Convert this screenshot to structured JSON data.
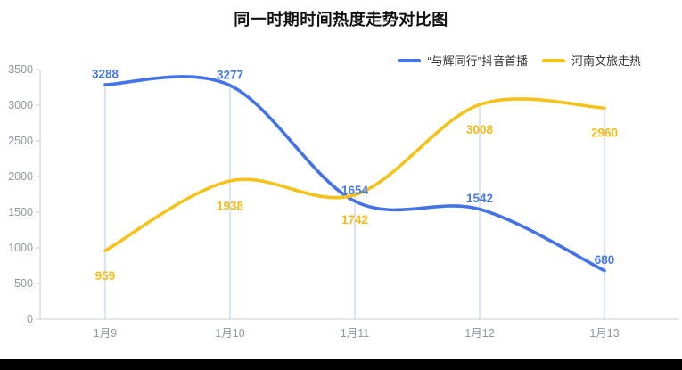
{
  "page": {
    "background": "#ffffff",
    "bottom_bar_color": "#000000"
  },
  "chart_data": {
    "type": "line",
    "title": "同一时期时间热度走势对比图",
    "categories": [
      "1月9",
      "1月10",
      "1月11",
      "1月12",
      "1月13"
    ],
    "series": [
      {
        "name": "“与辉同行”抖音首播",
        "values": [
          3288,
          3277,
          1654,
          1542,
          680
        ],
        "color": "#4472e8",
        "label_color": "#4779e8",
        "label_position": "top"
      },
      {
        "name": "河南文旅走热",
        "values": [
          959,
          1938,
          1742,
          3008,
          2960
        ],
        "color": "#f5c21a",
        "label_color": "#f8bc18",
        "label_position": "bottom"
      }
    ],
    "xlabel": "",
    "ylabel": "",
    "ylim": [
      0,
      3500
    ],
    "ytick_step": 500,
    "yticks": [
      "0",
      "500",
      "1000",
      "1500",
      "2000",
      "2500",
      "3000",
      "3500"
    ],
    "smooth": true,
    "grid": false,
    "legend_position": "top-right",
    "guide_line_color": "#b3c9f2",
    "axis_line_color": "#cccccc",
    "axis_label_color": "#9097a3"
  }
}
